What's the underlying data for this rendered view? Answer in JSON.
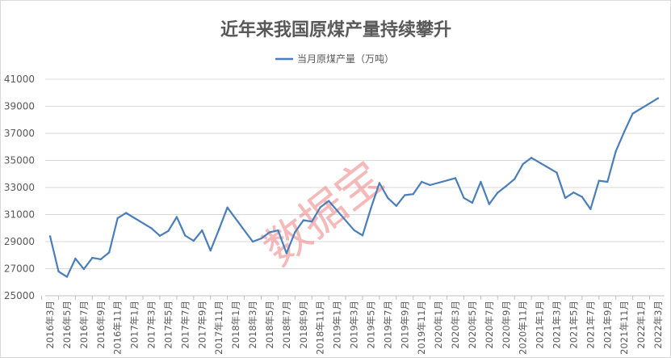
{
  "chart_data": {
    "type": "line",
    "title": "近年来我国原煤产量持续攀升",
    "legend_position": "top",
    "grid": true,
    "ylim": [
      25000,
      41000
    ],
    "yticks": [
      25000,
      27000,
      29000,
      31000,
      33000,
      35000,
      37000,
      39000,
      41000
    ],
    "xtick_labels": [
      "2016年3月",
      "2016年5月",
      "2016年7月",
      "2016年9月",
      "2016年11月",
      "2017年1月",
      "2017年3月",
      "2017年5月",
      "2017年7月",
      "2017年9月",
      "2017年11月",
      "2018年1月",
      "2018年3月",
      "2018年5月",
      "2018年7月",
      "2018年9月",
      "2018年11月",
      "2019年1月",
      "2019年3月",
      "2019年5月",
      "2019年7月",
      "2019年9月",
      "2019年11月",
      "2020年1月",
      "2020年3月",
      "2020年5月",
      "2020年7月",
      "2020年9月",
      "2020年11月",
      "2021年1月",
      "2021年3月",
      "2021年5月",
      "2021年7月",
      "2021年9月",
      "2021年11月",
      "2022年1月",
      "2022年3月"
    ],
    "x": [
      "2016-03",
      "2016-04",
      "2016-05",
      "2016-06",
      "2016-07",
      "2016-08",
      "2016-09",
      "2016-10",
      "2016-11",
      "2016-12",
      "2017-01",
      "2017-02",
      "2017-03",
      "2017-04",
      "2017-05",
      "2017-06",
      "2017-07",
      "2017-08",
      "2017-09",
      "2017-10",
      "2017-11",
      "2017-12",
      "2018-01",
      "2018-02",
      "2018-03",
      "2018-04",
      "2018-05",
      "2018-06",
      "2018-07",
      "2018-08",
      "2018-09",
      "2018-10",
      "2018-11",
      "2018-12",
      "2019-01",
      "2019-02",
      "2019-03",
      "2019-04",
      "2019-05",
      "2019-06",
      "2019-07",
      "2019-08",
      "2019-09",
      "2019-10",
      "2019-11",
      "2019-12",
      "2020-01",
      "2020-02",
      "2020-03",
      "2020-04",
      "2020-05",
      "2020-06",
      "2020-07",
      "2020-08",
      "2020-09",
      "2020-10",
      "2020-11",
      "2020-12",
      "2021-01",
      "2021-02",
      "2021-03",
      "2021-04",
      "2021-05",
      "2021-06",
      "2021-07",
      "2021-08",
      "2021-09",
      "2021-10",
      "2021-11",
      "2021-12",
      "2022-01",
      "2022-02",
      "2022-03"
    ],
    "series": [
      {
        "name": "当月原煤产量（万吨）",
        "color": "#4a7ebb",
        "values": [
          29400,
          26800,
          26400,
          27750,
          26970,
          27800,
          27700,
          28200,
          30740,
          31120,
          null,
          null,
          29990,
          29430,
          29790,
          30820,
          29450,
          29060,
          29830,
          28340,
          29900,
          31520,
          null,
          null,
          29000,
          29230,
          29690,
          29830,
          28140,
          29690,
          30580,
          30480,
          31540,
          32010,
          null,
          null,
          29850,
          29460,
          31480,
          33330,
          32230,
          31640,
          32430,
          32510,
          33420,
          33180,
          null,
          null,
          33690,
          32230,
          31870,
          33420,
          31770,
          32610,
          33100,
          33620,
          34730,
          35190,
          null,
          null,
          34100,
          32230,
          32630,
          32310,
          31400,
          33500,
          33420,
          35680,
          37130,
          38460,
          null,
          null,
          39590
        ]
      }
    ],
    "watermark": "数据宝"
  }
}
